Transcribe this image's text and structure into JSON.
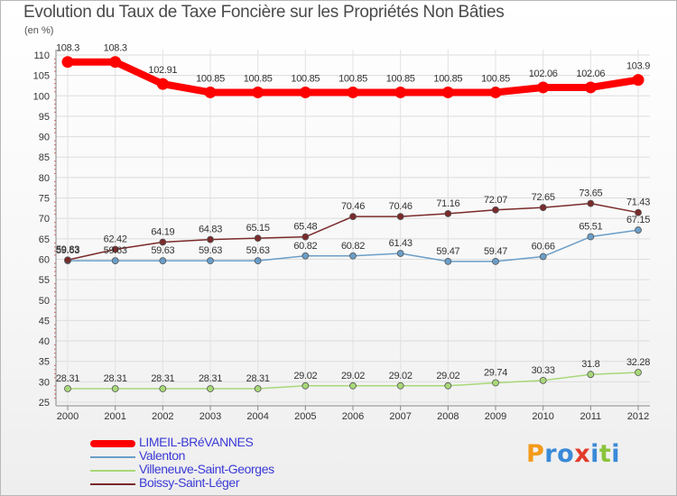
{
  "title": "Evolution du Taux de Taxe Foncière sur les Propriétés Non Bâties",
  "unit": "(en %)",
  "logo": {
    "letters": [
      "P",
      "r",
      "o",
      "x",
      "i",
      "t",
      "i"
    ],
    "colors": [
      "#f39a1a",
      "#3a8ad8",
      "#3a8ad8",
      "#e23c2a",
      "#3a8ad8",
      "#8ac43a",
      "#3a8ad8"
    ]
  },
  "chart_data": {
    "type": "line",
    "title": "Evolution du Taux de Taxe Foncière sur les Propriétés Non Bâties",
    "ylabel": "(en %)",
    "xlabel": "",
    "ylim": [
      25,
      110
    ],
    "yticks": [
      "25",
      "30",
      "35",
      "40",
      "45",
      "50",
      "55",
      "60",
      "65",
      "70",
      "75",
      "80",
      "85",
      "90",
      "95",
      "100",
      "105",
      "110"
    ],
    "categories": [
      "2000",
      "2001",
      "2002",
      "2003",
      "2004",
      "2005",
      "2006",
      "2007",
      "2008",
      "2009",
      "2010",
      "2011",
      "2012"
    ],
    "series": [
      {
        "name": "LIMEIL-BRéVANNES",
        "color": "#ff0000",
        "values": [
          108.3,
          108.3,
          102.91,
          100.85,
          100.85,
          100.85,
          100.85,
          100.85,
          100.85,
          100.85,
          102.06,
          102.06,
          103.9
        ],
        "labels": [
          "108.3",
          "108.3",
          "102.91",
          "100.85",
          "100.85",
          "100.85",
          "100.85",
          "100.85",
          "100.85",
          "100.85",
          "102.06",
          "102.06",
          "103.9"
        ]
      },
      {
        "name": "Valenton",
        "color": "#6a9ec8",
        "values": [
          59.63,
          59.63,
          59.63,
          59.63,
          59.63,
          60.82,
          60.82,
          61.43,
          59.47,
          59.47,
          60.66,
          65.51,
          67.15
        ],
        "labels": [
          "59.63",
          "59.63",
          "59.63",
          "59.63",
          "59.63",
          "60.82",
          "60.82",
          "61.43",
          "59.47",
          "59.47",
          "60.66",
          "65.51",
          "67.15"
        ]
      },
      {
        "name": "Villeneuve-Saint-Georges",
        "color": "#a8d878",
        "values": [
          28.31,
          28.31,
          28.31,
          28.31,
          28.31,
          29.02,
          29.02,
          29.02,
          29.02,
          29.74,
          30.33,
          31.8,
          32.28
        ],
        "labels": [
          "28.31",
          "28.31",
          "28.31",
          "28.31",
          "28.31",
          "29.02",
          "29.02",
          "29.02",
          "29.02",
          "29.74",
          "30.33",
          "31.8",
          "32.28"
        ]
      },
      {
        "name": "Boissy-Saint-Léger",
        "color": "#7a2a2a",
        "values": [
          59.83,
          62.42,
          64.19,
          64.83,
          65.15,
          65.48,
          70.46,
          70.46,
          71.16,
          72.07,
          72.65,
          73.65,
          71.43
        ],
        "labels": [
          "59.83",
          "62.42",
          "64.19",
          "64.83",
          "65.15",
          "65.48",
          "70.46",
          "70.46",
          "71.16",
          "72.07",
          "72.65",
          "73.65",
          "71.43"
        ]
      }
    ]
  }
}
